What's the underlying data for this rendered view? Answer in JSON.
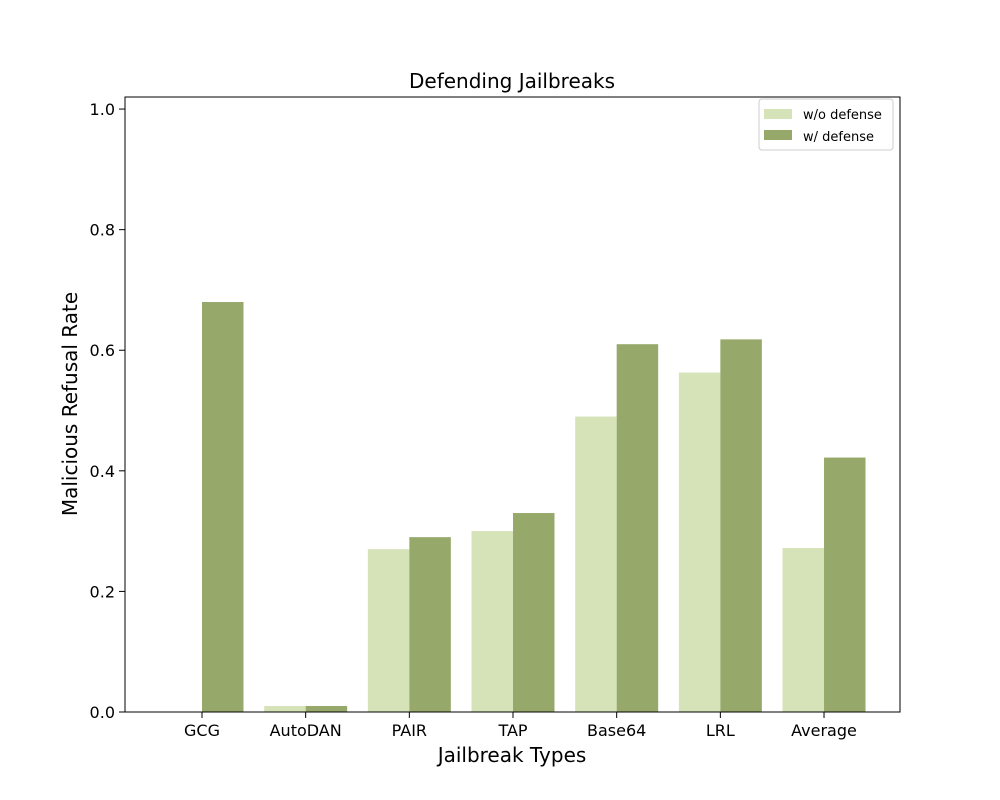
{
  "chart_data": {
    "type": "bar",
    "title": "Defending Jailbreaks",
    "xlabel": "Jailbreak Types",
    "ylabel": "Malicious Refusal Rate",
    "categories": [
      "GCG",
      "AutoDAN",
      "PAIR",
      "TAP",
      "Base64",
      "LRL",
      "Average"
    ],
    "series": [
      {
        "name": "w/o defense",
        "color": "#d6e3b8",
        "values": [
          0.0,
          0.01,
          0.27,
          0.3,
          0.49,
          0.563,
          0.272
        ]
      },
      {
        "name": "w/ defense",
        "color": "#97a96a",
        "values": [
          0.68,
          0.01,
          0.29,
          0.33,
          0.61,
          0.618,
          0.422
        ]
      }
    ],
    "ylim": [
      0,
      1.02
    ],
    "yticks": [
      "0.0",
      "0.2",
      "0.4",
      "0.6",
      "0.8",
      "1.0"
    ],
    "grid": false,
    "legend_position": "top-right"
  }
}
